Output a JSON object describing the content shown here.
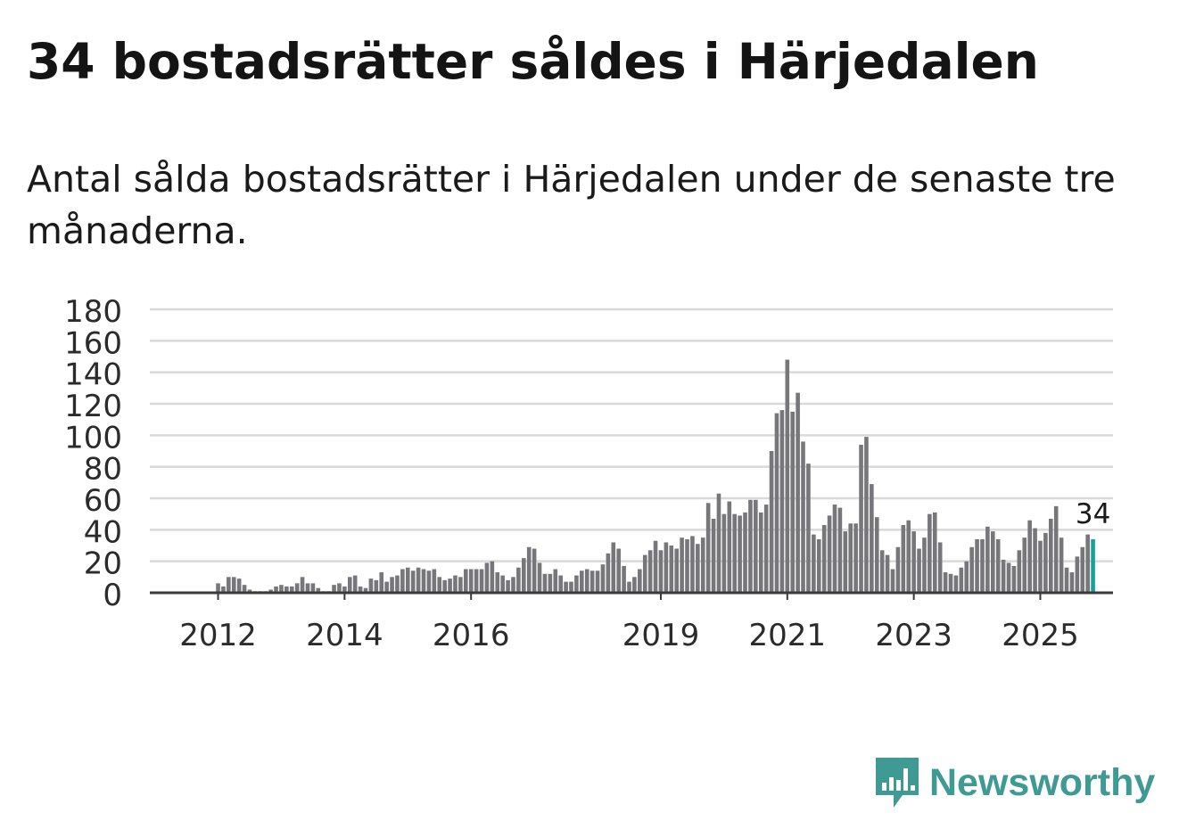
{
  "title": "34 bostadsrätter såldes i Härjedalen",
  "subtitle": "Antal sålda bostadsrätter i Härjedalen under de senaste tre månaderna.",
  "brand": {
    "name": "Newsworthy",
    "color": "#3f9a94",
    "icon": "newsworthy-logo-icon"
  },
  "chart_data": {
    "type": "bar",
    "title": "34 bostadsrätter såldes i Härjedalen",
    "xlabel": "",
    "ylabel": "",
    "ylim": [
      0,
      180
    ],
    "yticks": [
      0,
      20,
      40,
      60,
      80,
      100,
      120,
      140,
      160,
      180
    ],
    "grid": true,
    "x_start": "2011-01",
    "xtick_labels": [
      {
        "label": "2012",
        "month_index": 12
      },
      {
        "label": "2014",
        "month_index": 36
      },
      {
        "label": "2016",
        "month_index": 60
      },
      {
        "label": "2019",
        "month_index": 96
      },
      {
        "label": "2021",
        "month_index": 120
      },
      {
        "label": "2023",
        "month_index": 144
      },
      {
        "label": "2025",
        "month_index": 168
      }
    ],
    "highlight": {
      "month_index": 178,
      "value": 34,
      "label": "34",
      "color": "#13a39a"
    },
    "bar_color": "#77767b",
    "values": [
      0,
      0,
      0,
      0,
      0,
      0,
      0,
      0,
      0,
      0,
      0,
      0,
      6,
      4,
      10,
      10,
      9,
      5,
      2,
      1,
      1,
      1,
      2,
      4,
      5,
      4,
      4,
      6,
      10,
      6,
      6,
      3,
      1,
      1,
      5,
      6,
      4,
      10,
      11,
      4,
      3,
      9,
      8,
      13,
      7,
      10,
      11,
      15,
      16,
      14,
      16,
      15,
      14,
      15,
      10,
      8,
      9,
      11,
      10,
      15,
      15,
      15,
      15,
      19,
      20,
      13,
      11,
      8,
      10,
      16,
      22,
      29,
      28,
      19,
      12,
      12,
      15,
      11,
      7,
      7,
      11,
      14,
      15,
      14,
      14,
      18,
      25,
      32,
      28,
      17,
      7,
      10,
      15,
      24,
      27,
      33,
      27,
      32,
      30,
      28,
      35,
      34,
      36,
      31,
      35,
      57,
      47,
      63,
      50,
      58,
      50,
      49,
      51,
      59,
      59,
      51,
      56,
      90,
      114,
      116,
      148,
      115,
      127,
      96,
      82,
      37,
      34,
      43,
      49,
      56,
      54,
      39,
      44,
      44,
      94,
      99,
      69,
      48,
      27,
      24,
      15,
      29,
      43,
      46,
      39,
      28,
      35,
      50,
      51,
      32,
      13,
      12,
      11,
      16,
      20,
      29,
      34,
      34,
      42,
      39,
      34,
      21,
      19,
      17,
      27,
      35,
      46,
      41,
      33,
      38,
      47,
      55,
      35,
      16,
      13,
      23,
      29,
      37,
      34
    ]
  }
}
